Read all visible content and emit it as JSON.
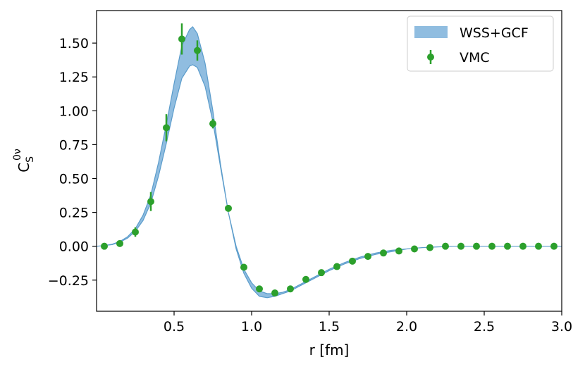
{
  "chart_data": {
    "type": "line",
    "xlabel": "r [fm]",
    "ylabel": {
      "base": "C",
      "sub": "S",
      "sup": "0ν"
    },
    "xlim": [
      0.0,
      3.0
    ],
    "ylim": [
      -0.48,
      1.74
    ],
    "xticks": [
      0.5,
      1.0,
      1.5,
      2.0,
      2.5,
      3.0
    ],
    "xtick_labels": [
      "0.5",
      "1.0",
      "1.5",
      "2.0",
      "2.5",
      "3.0"
    ],
    "yticks": [
      -0.25,
      0.0,
      0.25,
      0.5,
      0.75,
      1.0,
      1.25,
      1.5
    ],
    "ytick_labels": [
      "−0.25",
      "0.00",
      "0.25",
      "0.50",
      "0.75",
      "1.00",
      "1.25",
      "1.50"
    ],
    "legend": {
      "position": "top-right",
      "entries": [
        {
          "label": "WSS+GCF",
          "kind": "band"
        },
        {
          "label": "VMC",
          "kind": "errorbar"
        }
      ]
    },
    "band": {
      "name": "WSS+GCF",
      "color": "#90bde0",
      "edge_color": "#5b9ccb",
      "x": [
        0.0,
        0.05,
        0.1,
        0.15,
        0.2,
        0.25,
        0.3,
        0.35,
        0.4,
        0.45,
        0.5,
        0.55,
        0.6,
        0.62,
        0.65,
        0.7,
        0.75,
        0.8,
        0.85,
        0.9,
        0.95,
        1.0,
        1.05,
        1.1,
        1.15,
        1.2,
        1.25,
        1.3,
        1.4,
        1.5,
        1.6,
        1.7,
        1.8,
        1.9,
        2.0,
        2.1,
        2.2,
        2.3,
        2.4,
        2.5,
        2.6,
        2.8,
        3.0
      ],
      "upper": [
        0.0,
        0.005,
        0.015,
        0.035,
        0.07,
        0.13,
        0.23,
        0.38,
        0.62,
        0.9,
        1.2,
        1.48,
        1.6,
        1.62,
        1.57,
        1.35,
        1.0,
        0.6,
        0.25,
        0.0,
        -0.17,
        -0.27,
        -0.33,
        -0.35,
        -0.35,
        -0.34,
        -0.32,
        -0.29,
        -0.23,
        -0.17,
        -0.12,
        -0.08,
        -0.05,
        -0.03,
        -0.02,
        -0.01,
        -0.005,
        0.0,
        0.0,
        0.0,
        0.0,
        0.0,
        0.0
      ],
      "lower": [
        0.0,
        0.005,
        0.012,
        0.03,
        0.06,
        0.11,
        0.19,
        0.32,
        0.52,
        0.76,
        1.02,
        1.24,
        1.33,
        1.34,
        1.32,
        1.18,
        0.92,
        0.58,
        0.25,
        -0.02,
        -0.2,
        -0.31,
        -0.37,
        -0.38,
        -0.37,
        -0.35,
        -0.33,
        -0.3,
        -0.24,
        -0.18,
        -0.13,
        -0.09,
        -0.06,
        -0.04,
        -0.02,
        -0.01,
        -0.005,
        0.0,
        0.0,
        0.0,
        0.0,
        0.0,
        0.0
      ]
    },
    "series": [
      {
        "name": "VMC",
        "color": "#2ca02c",
        "x": [
          0.05,
          0.15,
          0.25,
          0.35,
          0.45,
          0.55,
          0.65,
          0.75,
          0.85,
          0.95,
          1.05,
          1.15,
          1.25,
          1.35,
          1.45,
          1.55,
          1.65,
          1.75,
          1.85,
          1.95,
          2.05,
          2.15,
          2.25,
          2.35,
          2.45,
          2.55,
          2.65,
          2.75,
          2.85,
          2.95
        ],
        "y": [
          0.0,
          0.02,
          0.105,
          0.33,
          0.875,
          1.53,
          1.445,
          0.905,
          0.28,
          -0.155,
          -0.315,
          -0.345,
          -0.315,
          -0.245,
          -0.195,
          -0.15,
          -0.11,
          -0.075,
          -0.05,
          -0.035,
          -0.02,
          -0.01,
          0.0,
          0.0,
          0.0,
          0.0,
          0.0,
          0.0,
          0.0,
          0.0
        ],
        "err": [
          0.0,
          0.0,
          0.035,
          0.07,
          0.1,
          0.115,
          0.075,
          0.035,
          0.0,
          0.0,
          0.0,
          0.0,
          0.0,
          0.0,
          0.0,
          0.0,
          0.0,
          0.0,
          0.0,
          0.0,
          0.0,
          0.0,
          0.0,
          0.0,
          0.0,
          0.0,
          0.0,
          0.0,
          0.0,
          0.0
        ]
      }
    ]
  }
}
